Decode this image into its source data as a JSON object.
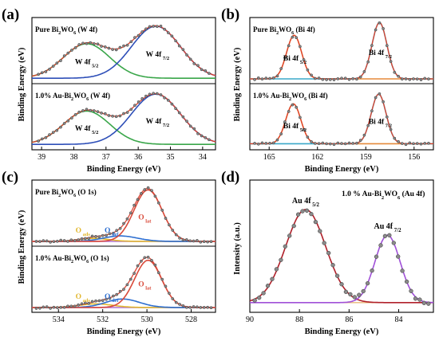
{
  "chart_data": [
    {
      "id": "a",
      "panel_label": "(a)",
      "type": "line",
      "xlabel": "Binding Energy (eV)",
      "ylabel": "Binding Energy (eV)",
      "xlim": [
        39.3,
        33.6
      ],
      "x_ticks": [
        "39",
        "38",
        "37",
        "36",
        "35",
        "34"
      ],
      "subplots": [
        {
          "name": "top",
          "sample_base": "Pure Bi",
          "sample_sub": "2",
          "sample_mid": "WO",
          "sample_sub2": "6",
          "sample_tail": " (W 4f)",
          "peak_labels": [
            {
              "main": "W 4f",
              "sub": "5/2",
              "x": 37.6
            },
            {
              "main": "W 4f",
              "sub": "7/2",
              "x": 35.4
            }
          ],
          "series": [
            {
              "role": "component",
              "color": "#3aa64a",
              "center": 37.6,
              "amp": 0.57,
              "width": 0.85
            },
            {
              "role": "component",
              "color": "#2e4fb8",
              "center": 35.45,
              "amp": 0.86,
              "width": 0.9
            }
          ],
          "baseline": 0.05,
          "envelope_color": "#e0402a",
          "points_color": "#555555",
          "points_x_range": [
            39.1,
            33.8
          ]
        },
        {
          "name": "bottom",
          "sample_base": "1.0% Au-Bi",
          "sample_sub": "2",
          "sample_mid": "WO",
          "sample_sub2": "6",
          "sample_tail": " (W 4f)",
          "peak_labels": [
            {
              "main": "W 4f",
              "sub": "5/2",
              "x": 37.6
            },
            {
              "main": "W 4f",
              "sub": "7/2",
              "x": 35.4
            }
          ],
          "series": [
            {
              "role": "component",
              "color": "#3aa64a",
              "center": 37.6,
              "amp": 0.55,
              "width": 0.85
            },
            {
              "role": "component",
              "color": "#2e4fb8",
              "center": 35.45,
              "amp": 0.83,
              "width": 0.9
            }
          ],
          "baseline": 0.05,
          "envelope_color": "#e0402a",
          "points_color": "#555555",
          "points_x_range": [
            39.1,
            33.8
          ]
        }
      ]
    },
    {
      "id": "b",
      "panel_label": "(b)",
      "type": "line",
      "xlabel": "Binding Energy (eV)",
      "ylabel": "Binding Energy (eV)",
      "xlim": [
        166.2,
        154.8
      ],
      "x_ticks": [
        "165",
        "162",
        "159",
        "156"
      ],
      "subplots": [
        {
          "name": "top",
          "sample_base": "Pure Bi",
          "sample_sub": "2",
          "sample_mid": "WO",
          "sample_sub2": "6",
          "sample_tail": " (Bi 4f)",
          "peak_labels": [
            {
              "main": "Bi 4f",
              "sub": "5/2",
              "x": 163.4
            },
            {
              "main": "Bi 4f",
              "sub": "7/2",
              "x": 158.1
            }
          ],
          "series": [
            {
              "role": "component",
              "color": "#e58a3a",
              "center": 163.45,
              "amp": 0.72,
              "width": 0.55
            },
            {
              "role": "component",
              "color": "#3aa8c8",
              "center": 158.15,
              "amp": 0.93,
              "width": 0.55
            }
          ],
          "baseline": 0.04,
          "envelope_color": "#e0402a",
          "points_color": "#555555",
          "points_x_range": [
            165.9,
            155.1
          ]
        },
        {
          "name": "bottom",
          "sample_base": "1.0% Au-Bi",
          "sample_sub": "2",
          "sample_mid": "WO",
          "sample_sub2": "6",
          "sample_tail": " (Bi 4f)",
          "peak_labels": [
            {
              "main": "Bi 4f",
              "sub": "5/2",
              "x": 163.4
            },
            {
              "main": "Bi 4f",
              "sub": "7/2",
              "x": 158.1
            }
          ],
          "series": [
            {
              "role": "component",
              "color": "#e58a3a",
              "center": 163.5,
              "amp": 0.66,
              "width": 0.55
            },
            {
              "role": "component",
              "color": "#3aa8c8",
              "center": 158.2,
              "amp": 0.82,
              "width": 0.55
            }
          ],
          "baseline": 0.06,
          "envelope_color": "#e0402a",
          "points_color": "#555555",
          "points_x_range": [
            165.9,
            155.1
          ]
        }
      ]
    },
    {
      "id": "c",
      "panel_label": "(c)",
      "type": "line",
      "xlabel": "Binding Energy (eV)",
      "ylabel": "Binding Energy (eV)",
      "xlim": [
        535.2,
        526.9
      ],
      "x_ticks": [
        "534",
        "532",
        "530",
        "528"
      ],
      "subplots": [
        {
          "name": "top",
          "sample_base": "Pure Bi",
          "sample_sub": "2",
          "sample_mid": "WO",
          "sample_sub2": "6",
          "sample_tail": " (O 1s)",
          "peak_labels": [
            {
              "main": "O",
              "sub": "ads",
              "x": 532.9,
              "color": "#e2b830"
            },
            {
              "main": "O",
              "sub": "def",
              "x": 531.6,
              "color": "#2e6fd0"
            },
            {
              "main": "O",
              "sub": "lat",
              "x": 530.1,
              "color": "#d94a3a"
            }
          ],
          "series": [
            {
              "role": "component",
              "color": "#e2b830",
              "center": 532.4,
              "amp": 0.05,
              "width": 0.8
            },
            {
              "role": "component",
              "color": "#2e6fd0",
              "center": 531.2,
              "amp": 0.09,
              "width": 0.9
            },
            {
              "role": "component",
              "color": "#d94a3a",
              "center": 529.95,
              "amp": 0.85,
              "width": 0.75
            }
          ],
          "baseline": 0.04,
          "envelope_color": "#d94a3a",
          "points_color": "#555555",
          "points_x_range": [
            535.0,
            527.1
          ],
          "baseline_color": "#b070d0"
        },
        {
          "name": "bottom",
          "sample_base": "1.0% Au-Bi",
          "sample_sub": "2",
          "sample_mid": "WO",
          "sample_sub2": "6",
          "sample_tail": " (O 1s)",
          "peak_labels": [
            {
              "main": "O",
              "sub": "ads",
              "x": 532.9,
              "color": "#e2b830"
            },
            {
              "main": "O",
              "sub": "def",
              "x": 531.6,
              "color": "#2e6fd0"
            },
            {
              "main": "O",
              "sub": "lat",
              "x": 530.1,
              "color": "#d94a3a"
            }
          ],
          "series": [
            {
              "role": "component",
              "color": "#e2b830",
              "center": 532.3,
              "amp": 0.06,
              "width": 0.9
            },
            {
              "role": "component",
              "color": "#2e6fd0",
              "center": 531.1,
              "amp": 0.14,
              "width": 0.9
            },
            {
              "role": "component",
              "color": "#d94a3a",
              "center": 529.95,
              "amp": 0.78,
              "width": 0.72
            }
          ],
          "baseline": 0.04,
          "envelope_color": "#d94a3a",
          "points_color": "#555555",
          "points_x_range": [
            535.0,
            527.1
          ],
          "baseline_color": "#b070d0"
        }
      ]
    },
    {
      "id": "d",
      "panel_label": "(d)",
      "type": "line",
      "xlabel": "Binding Energy (eV)",
      "ylabel": "Intensity (a.u.)",
      "xlim": [
        90.0,
        82.6
      ],
      "x_ticks": [
        "90",
        "88",
        "86",
        "84"
      ],
      "title_base": "1.0 % Au-Bi",
      "title_sub": "2",
      "title_mid": "WO",
      "title_sub2": "6",
      "title_tail": " (Au 4f)",
      "peak_labels": [
        {
          "main": "Au 4f",
          "sub": "5/2",
          "x": 87.75
        },
        {
          "main": "Au 4f",
          "sub": "7/2",
          "x": 84.45
        }
      ],
      "series": [
        {
          "role": "component",
          "color": "#b0202a",
          "center": 87.75,
          "amp": 0.8,
          "width": 0.95
        },
        {
          "role": "component",
          "color": "#a050d8",
          "center": 84.45,
          "amp": 0.58,
          "width": 0.6
        }
      ],
      "baseline": 0.015,
      "baseline_color": "#e8b878",
      "points_color": "#555555",
      "points_x_range": [
        89.8,
        82.8
      ]
    }
  ]
}
